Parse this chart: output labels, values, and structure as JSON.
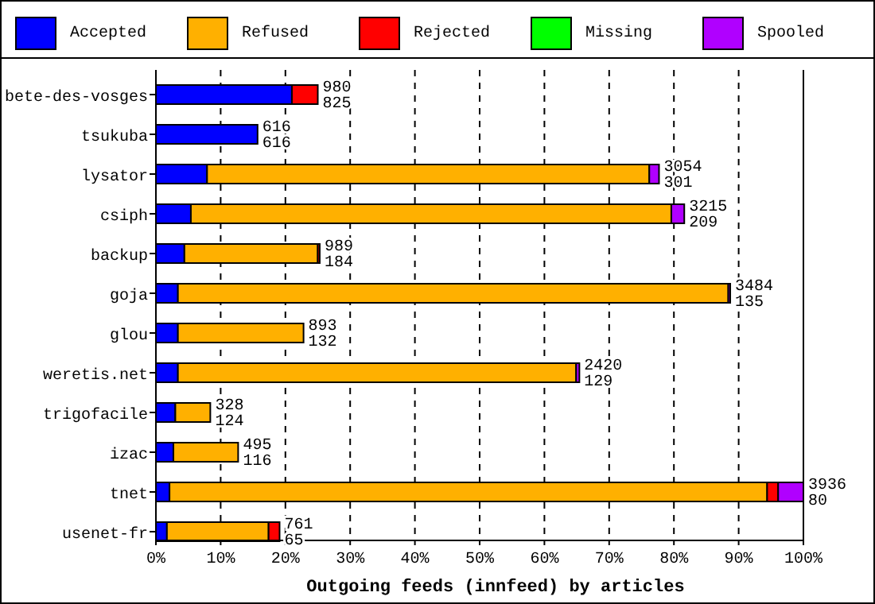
{
  "chart_data": {
    "type": "bar",
    "orientation": "horizontal",
    "stacked": true,
    "xlabel": "Outgoing feeds (innfeed) by articles",
    "categories": [
      "bete-des-vosges",
      "tsukuba",
      "lysator",
      "csiph",
      "backup",
      "goja",
      "glou",
      "weretis.net",
      "trigofacile",
      "izac",
      "tnet",
      "usenet-fr"
    ],
    "series": [
      {
        "name": "Accepted",
        "color": "#0000ff",
        "values": [
          21,
          15.7,
          7.9,
          5.4,
          4.4,
          3.4,
          3.4,
          3.4,
          3.0,
          2.7,
          2.1,
          1.7
        ]
      },
      {
        "name": "Refused",
        "color": "#ffb000",
        "values": [
          0,
          0,
          68.3,
          74.2,
          20.6,
          85.0,
          19.4,
          61.5,
          5.4,
          10.0,
          92.3,
          15.7
        ]
      },
      {
        "name": "Rejected",
        "color": "#ff0000",
        "values": [
          4,
          0,
          0,
          0,
          0.3,
          0,
          0,
          0,
          0,
          0,
          1.7,
          1.7
        ]
      },
      {
        "name": "Missing",
        "color": "#00ff00",
        "values": [
          0,
          0,
          0,
          0,
          0,
          0,
          0,
          0,
          0,
          0,
          0,
          0
        ]
      },
      {
        "name": "Spooled",
        "color": "#b000ff",
        "values": [
          0,
          0,
          1.5,
          2.0,
          0,
          0.3,
          0,
          0.5,
          0,
          0,
          3.9,
          0
        ]
      }
    ],
    "annotations": [
      {
        "text": "980\n825",
        "x": 25,
        "y": "bete-des-vosges"
      },
      {
        "text": "616\n616",
        "x": 15.7,
        "y": "tsukuba"
      },
      {
        "text": "3054\n301",
        "x": 77.7,
        "y": "lysator"
      },
      {
        "text": "3215\n209",
        "x": 81.6,
        "y": "csiph"
      },
      {
        "text": "989\n184",
        "x": 25.3,
        "y": "backup"
      },
      {
        "text": "3484\n135",
        "x": 88.7,
        "y": "goja"
      },
      {
        "text": "893\n132",
        "x": 22.8,
        "y": "glou"
      },
      {
        "text": "2420\n129",
        "x": 65.4,
        "y": "weretis.net"
      },
      {
        "text": "328\n124",
        "x": 8.4,
        "y": "trigofacile"
      },
      {
        "text": "495\n116",
        "x": 12.7,
        "y": "izac"
      },
      {
        "text": "3936\n80",
        "x": 100,
        "y": "tnet"
      },
      {
        "text": "761\n65",
        "x": 19.1,
        "y": "usenet-fr"
      }
    ],
    "xlim": [
      0,
      100
    ],
    "xticks": [
      {
        "value": 0,
        "label": "0%"
      },
      {
        "value": 10,
        "label": "10%"
      },
      {
        "value": 20,
        "label": "20%"
      },
      {
        "value": 30,
        "label": "30%"
      },
      {
        "value": 40,
        "label": "40%"
      },
      {
        "value": 50,
        "label": "50%"
      },
      {
        "value": 60,
        "label": "60%"
      },
      {
        "value": 70,
        "label": "70%"
      },
      {
        "value": 80,
        "label": "80%"
      },
      {
        "value": 90,
        "label": "90%"
      },
      {
        "value": 100,
        "label": "100%"
      }
    ],
    "grid": "x",
    "legend": "top"
  }
}
